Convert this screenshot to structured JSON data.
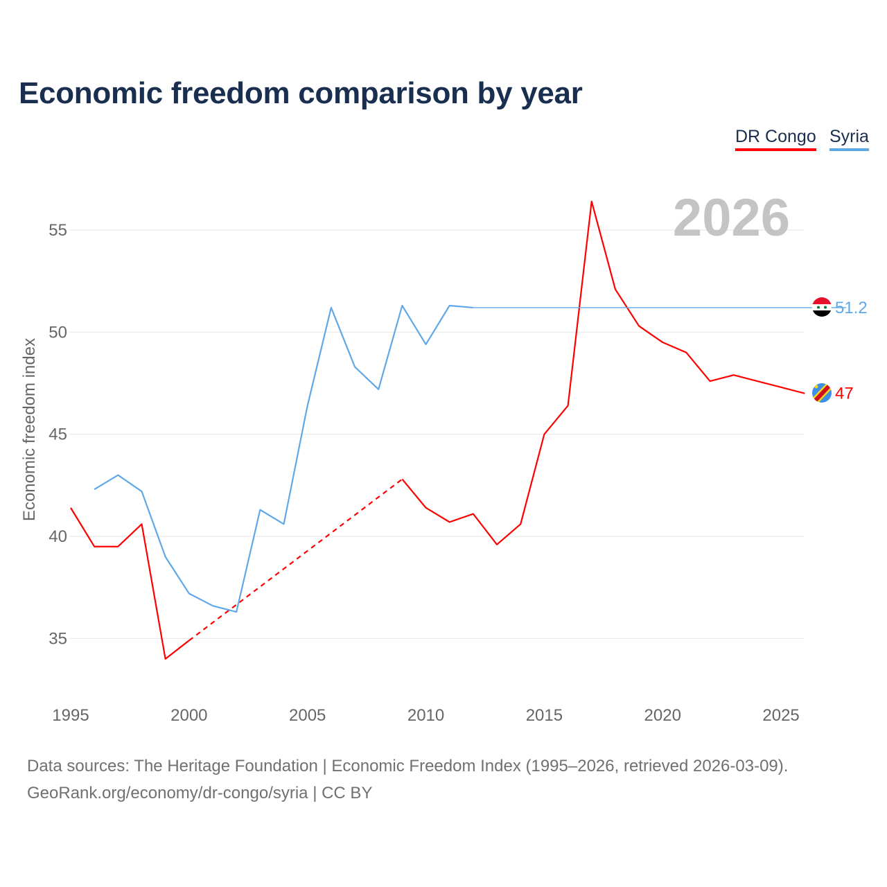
{
  "title": "Economic freedom comparison by year",
  "legend": [
    "DR Congo",
    "Syria"
  ],
  "footer": {
    "line1": "Data sources: The Heritage Foundation | Economic Freedom Index (1995–2026, retrieved 2026-03-09).",
    "line2": "GeoRank.org/economy/dr-congo/syria | CC BY"
  },
  "chart_data": {
    "type": "line",
    "title": "Economic freedom comparison by year",
    "xlabel": "",
    "ylabel": "Economic freedom index",
    "xlim": [
      1995,
      2026
    ],
    "ylim": [
      33,
      57
    ],
    "xticks": [
      1995,
      2000,
      2005,
      2010,
      2015,
      2020,
      2025
    ],
    "yticks": [
      35,
      40,
      45,
      50,
      55
    ],
    "grid": true,
    "legend_position": "top-right",
    "year_watermark": "2026",
    "series": [
      {
        "name": "DR Congo",
        "color": "#ff0000",
        "end_label": "47",
        "x": [
          1995,
          1996,
          1997,
          1998,
          1999,
          2000,
          2009,
          2010,
          2011,
          2012,
          2013,
          2014,
          2015,
          2016,
          2017,
          2018,
          2019,
          2020,
          2021,
          2022,
          2023,
          2024,
          2025,
          2026
        ],
        "y": [
          41.4,
          39.5,
          39.5,
          40.6,
          34.0,
          34.9,
          42.8,
          41.4,
          40.7,
          41.1,
          39.6,
          40.6,
          45.0,
          46.4,
          56.4,
          52.1,
          50.3,
          49.5,
          49.0,
          47.6,
          47.9,
          47.6,
          47.3,
          47.0
        ],
        "gaps": [
          [
            2000,
            2009
          ]
        ]
      },
      {
        "name": "Syria",
        "color": "#5fa8e8",
        "end_label": "51.2",
        "x": [
          1996,
          1997,
          1998,
          1999,
          2000,
          2001,
          2002,
          2003,
          2004,
          2005,
          2006,
          2007,
          2008,
          2009,
          2010,
          2011,
          2012
        ],
        "y": [
          42.3,
          43.0,
          42.2,
          39.0,
          37.2,
          36.6,
          36.3,
          41.3,
          40.6,
          46.4,
          51.2,
          48.3,
          47.2,
          51.3,
          49.4,
          51.3,
          51.2
        ],
        "carried_forward_to": 2026
      }
    ]
  }
}
